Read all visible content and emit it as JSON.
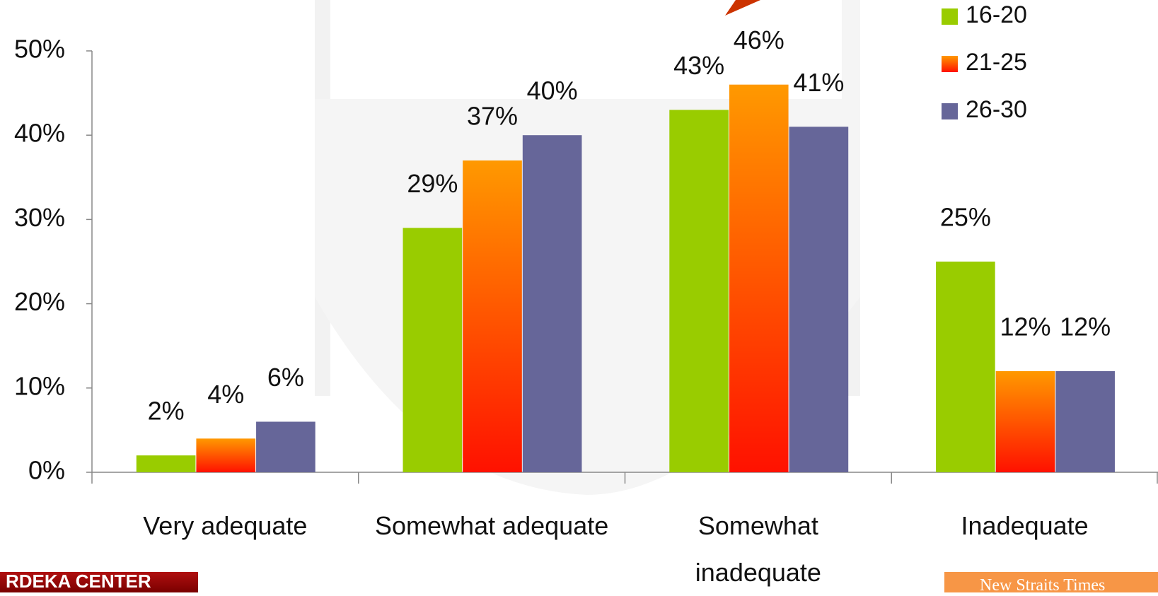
{
  "chart_data": {
    "type": "bar",
    "categories": [
      "Very adequate",
      "Somewhat adequate",
      "Somewhat\ninadequate",
      "Inadequate"
    ],
    "series": [
      {
        "name": "16-20",
        "color": "#99cc00",
        "values": [
          2,
          29,
          43,
          25
        ],
        "value_labels": [
          "2%",
          "29%",
          "43%",
          "25%"
        ]
      },
      {
        "name": "21-25",
        "color": "#ff9900",
        "gradient_to": "#ff1100",
        "values": [
          4,
          37,
          46,
          12
        ],
        "value_labels": [
          "4%",
          "37%",
          "46%",
          "12%"
        ]
      },
      {
        "name": "26-30",
        "color": "#666699",
        "values": [
          6,
          40,
          41,
          12
        ],
        "value_labels": [
          "6%",
          "40%",
          "41%",
          "12%"
        ]
      }
    ],
    "ylim": [
      0,
      50
    ],
    "yticks": [
      {
        "value": 0,
        "label": "0%"
      },
      {
        "value": 10,
        "label": "10%"
      },
      {
        "value": 20,
        "label": "20%"
      },
      {
        "value": 30,
        "label": "30%"
      },
      {
        "value": 40,
        "label": "40%"
      },
      {
        "value": 50,
        "label": "50%"
      }
    ],
    "legend": "top-right"
  },
  "footer": {
    "left": "RDEKA CENTER",
    "right": "New Straits Times"
  }
}
